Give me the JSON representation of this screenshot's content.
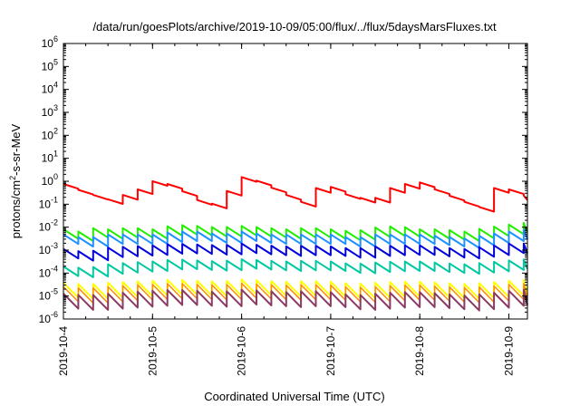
{
  "chart_data": {
    "type": "line",
    "title": "/data/run/goesPlots/archive/2019-10-09/05:00/flux/../flux/5daysMarsFluxes.txt",
    "xlabel": "Coordinated Universal Time (UTC)",
    "ylabel_parts": [
      "protons/cm",
      "2",
      "-s-sr-MeV"
    ],
    "yscale": "log",
    "ylim": [
      1e-06,
      1000000.0
    ],
    "xlim": [
      "2019-10-04T00:00",
      "2019-10-09T05:00"
    ],
    "grid": false,
    "legend": "none",
    "y_ticks": [
      {
        "base": "10",
        "exp": "-6"
      },
      {
        "base": "10",
        "exp": "-5"
      },
      {
        "base": "10",
        "exp": "-4"
      },
      {
        "base": "10",
        "exp": "-3"
      },
      {
        "base": "10",
        "exp": "-2"
      },
      {
        "base": "10",
        "exp": "-1"
      },
      {
        "base": "10",
        "exp": "0"
      },
      {
        "base": "10",
        "exp": "1"
      },
      {
        "base": "10",
        "exp": "2"
      },
      {
        "base": "10",
        "exp": "3"
      },
      {
        "base": "10",
        "exp": "4"
      },
      {
        "base": "10",
        "exp": "5"
      },
      {
        "base": "10",
        "exp": "6"
      }
    ],
    "x_ticks": [
      "2019-10-4",
      "2019-10-5",
      "2019-10-6",
      "2019-10-7",
      "2019-10-8",
      "2019-10-9"
    ],
    "sawtooth_period_hours": 4,
    "series": [
      {
        "color": "#ff0000",
        "width": 2,
        "x": [
          "2019-10-04T00:00",
          "2019-10-04T06:00",
          "2019-10-04T12:00",
          "2019-10-04T14:00",
          "2019-10-04T16:00",
          "2019-10-04T18:00",
          "2019-10-04T20:00",
          "2019-10-04T22:00",
          "2019-10-05T00:00",
          "2019-10-05T02:00",
          "2019-10-05T04:00",
          "2019-10-05T06:00",
          "2019-10-05T12:00",
          "2019-10-05T18:00",
          "2019-10-05T20:00",
          "2019-10-05T22:00",
          "2019-10-06T00:00",
          "2019-10-06T03:00",
          "2019-10-06T06:00",
          "2019-10-06T12:00",
          "2019-10-06T16:00",
          "2019-10-06T18:00",
          "2019-10-06T20:00",
          "2019-10-06T22:00",
          "2019-10-07T00:00",
          "2019-10-07T06:00",
          "2019-10-07T12:00",
          "2019-10-07T16:00",
          "2019-10-07T18:00",
          "2019-10-07T20:00",
          "2019-10-07T22:00",
          "2019-10-08T00:00",
          "2019-10-08T06:00",
          "2019-10-08T12:00",
          "2019-10-08T16:00",
          "2019-10-08T18:00",
          "2019-10-08T20:00",
          "2019-10-08T22:00",
          "2019-10-09T00:00",
          "2019-10-09T02:00",
          "2019-10-09T03:00",
          "2019-10-09T05:00"
        ],
        "y": [
          0.6,
          0.25,
          0.13,
          0.12,
          0.2,
          0.15,
          0.35,
          0.8,
          0.8,
          0.65,
          0.6,
          0.45,
          0.12,
          0.07,
          0.3,
          0.4,
          1.2,
          1.0,
          0.6,
          0.2,
          0.1,
          0.25,
          0.4,
          0.5,
          0.45,
          0.15,
          0.15,
          0.4,
          0.5,
          0.6,
          0.8,
          0.7,
          0.25,
          0.1,
          0.06,
          0.15,
          0.4,
          0.3,
          0.35,
          0.25,
          0.2,
          0.18
        ]
      },
      {
        "color": "#22ee00",
        "width": 2,
        "x": [
          "2019-10-04T00:00",
          "2019-10-04T04:00",
          "2019-10-04T06:00",
          "2019-10-04T12:00",
          "2019-10-04T18:00",
          "2019-10-05T00:00",
          "2019-10-05T06:00",
          "2019-10-05T12:00",
          "2019-10-05T18:00",
          "2019-10-06T00:00",
          "2019-10-06T06:00",
          "2019-10-06T12:00",
          "2019-10-06T18:00",
          "2019-10-07T00:00",
          "2019-10-07T06:00",
          "2019-10-07T12:00",
          "2019-10-07T18:00",
          "2019-10-08T00:00",
          "2019-10-08T06:00",
          "2019-10-08T12:00",
          "2019-10-08T18:00",
          "2019-10-09T00:00",
          "2019-10-09T05:00"
        ],
        "y": [
          0.005,
          0.004,
          0.006,
          0.005,
          0.006,
          0.005,
          0.008,
          0.007,
          0.006,
          0.007,
          0.006,
          0.005,
          0.006,
          0.005,
          0.004,
          0.006,
          0.007,
          0.005,
          0.005,
          0.004,
          0.006,
          0.008,
          0.01
        ]
      },
      {
        "color": "#1e90ff",
        "width": 2,
        "x": [
          "2019-10-04T00:00",
          "2019-10-04T06:00",
          "2019-10-04T12:00",
          "2019-10-04T18:00",
          "2019-10-05T00:00",
          "2019-10-05T06:00",
          "2019-10-05T12:00",
          "2019-10-05T18:00",
          "2019-10-06T00:00",
          "2019-10-06T06:00",
          "2019-10-06T12:00",
          "2019-10-06T18:00",
          "2019-10-07T00:00",
          "2019-10-07T06:00",
          "2019-10-07T12:00",
          "2019-10-07T18:00",
          "2019-10-08T00:00",
          "2019-10-08T06:00",
          "2019-10-08T12:00",
          "2019-10-08T18:00",
          "2019-10-09T00:00",
          "2019-10-09T05:00"
        ],
        "y": [
          0.003,
          0.002,
          0.003,
          0.003,
          0.003,
          0.004,
          0.004,
          0.003,
          0.004,
          0.003,
          0.003,
          0.003,
          0.003,
          0.002,
          0.003,
          0.003,
          0.003,
          0.0025,
          0.002,
          0.003,
          0.004,
          0.005
        ]
      },
      {
        "color": "#0000dd",
        "width": 2,
        "x": [
          "2019-10-04T00:00",
          "2019-10-04T06:00",
          "2019-10-04T12:00",
          "2019-10-04T18:00",
          "2019-10-05T00:00",
          "2019-10-05T06:00",
          "2019-10-05T12:00",
          "2019-10-05T18:00",
          "2019-10-06T00:00",
          "2019-10-06T06:00",
          "2019-10-06T12:00",
          "2019-10-06T18:00",
          "2019-10-07T00:00",
          "2019-10-07T06:00",
          "2019-10-07T12:00",
          "2019-10-07T18:00",
          "2019-10-08T00:00",
          "2019-10-08T06:00",
          "2019-10-08T12:00",
          "2019-10-08T18:00",
          "2019-10-09T00:00",
          "2019-10-09T05:00"
        ],
        "y": [
          0.0007,
          0.0005,
          0.0008,
          0.0009,
          0.001,
          0.0012,
          0.0011,
          0.001,
          0.0012,
          0.001,
          0.0009,
          0.001,
          0.0009,
          0.0007,
          0.0009,
          0.001,
          0.001,
          0.0008,
          0.0007,
          0.0009,
          0.0012,
          0.0012
        ]
      },
      {
        "color": "#00c8a0",
        "width": 2,
        "x": [
          "2019-10-04T00:00",
          "2019-10-04T06:00",
          "2019-10-04T12:00",
          "2019-10-04T18:00",
          "2019-10-05T00:00",
          "2019-10-05T06:00",
          "2019-10-05T12:00",
          "2019-10-05T18:00",
          "2019-10-06T00:00",
          "2019-10-06T06:00",
          "2019-10-06T12:00",
          "2019-10-06T18:00",
          "2019-10-07T00:00",
          "2019-10-07T06:00",
          "2019-10-07T12:00",
          "2019-10-07T18:00",
          "2019-10-08T00:00",
          "2019-10-08T06:00",
          "2019-10-08T12:00",
          "2019-10-08T18:00",
          "2019-10-09T00:00",
          "2019-10-09T05:00"
        ],
        "y": [
          0.00012,
          0.0001,
          0.00015,
          0.00018,
          0.0002,
          0.00025,
          0.00022,
          0.0002,
          0.00025,
          0.00022,
          0.0002,
          0.00022,
          0.0002,
          0.00015,
          0.00018,
          0.0002,
          0.0002,
          0.00017,
          0.00015,
          0.00018,
          0.00022,
          0.00025
        ]
      },
      {
        "color": "#ffff00",
        "width": 2,
        "x": [
          "2019-10-04T00:00",
          "2019-10-04T06:00",
          "2019-10-04T12:00",
          "2019-10-04T18:00",
          "2019-10-05T00:00",
          "2019-10-05T06:00",
          "2019-10-05T12:00",
          "2019-10-05T18:00",
          "2019-10-06T00:00",
          "2019-10-06T06:00",
          "2019-10-06T12:00",
          "2019-10-06T18:00",
          "2019-10-07T00:00",
          "2019-10-07T06:00",
          "2019-10-07T12:00",
          "2019-10-07T18:00",
          "2019-10-08T00:00",
          "2019-10-08T06:00",
          "2019-10-08T12:00",
          "2019-10-08T18:00",
          "2019-10-09T00:00",
          "2019-10-09T05:00"
        ],
        "y": [
          1.8e-05,
          1.5e-05,
          1.8e-05,
          2e-05,
          2.2e-05,
          2.5e-05,
          2.2e-05,
          2e-05,
          2.5e-05,
          2.2e-05,
          2e-05,
          2.2e-05,
          2e-05,
          1.6e-05,
          1.8e-05,
          2e-05,
          2e-05,
          1.8e-05,
          1.6e-05,
          1.8e-05,
          2.2e-05,
          2.5e-05
        ]
      },
      {
        "color": "#ff8c00",
        "width": 1.5,
        "x": [
          "2019-10-04T00:00",
          "2019-10-04T06:00",
          "2019-10-04T12:00",
          "2019-10-04T18:00",
          "2019-10-05T00:00",
          "2019-10-05T06:00",
          "2019-10-05T12:00",
          "2019-10-05T18:00",
          "2019-10-06T00:00",
          "2019-10-06T06:00",
          "2019-10-06T12:00",
          "2019-10-06T18:00",
          "2019-10-07T00:00",
          "2019-10-07T06:00",
          "2019-10-07T12:00",
          "2019-10-07T18:00",
          "2019-10-08T00:00",
          "2019-10-08T06:00",
          "2019-10-08T12:00",
          "2019-10-08T18:00",
          "2019-10-09T00:00",
          "2019-10-09T05:00"
        ],
        "y": [
          1.2e-05,
          1e-05,
          1.2e-05,
          1.4e-05,
          1.5e-05,
          1.7e-05,
          1.5e-05,
          1.4e-05,
          1.7e-05,
          1.5e-05,
          1.4e-05,
          1.5e-05,
          1.4e-05,
          1.1e-05,
          1.2e-05,
          1.4e-05,
          1.4e-05,
          1.2e-05,
          1.1e-05,
          1.2e-05,
          1.5e-05,
          1.7e-05
        ]
      },
      {
        "color": "#8b3a62",
        "width": 2,
        "x": [
          "2019-10-04T00:00",
          "2019-10-04T06:00",
          "2019-10-04T12:00",
          "2019-10-04T18:00",
          "2019-10-05T00:00",
          "2019-10-05T06:00",
          "2019-10-05T12:00",
          "2019-10-05T18:00",
          "2019-10-06T00:00",
          "2019-10-06T06:00",
          "2019-10-06T12:00",
          "2019-10-06T18:00",
          "2019-10-07T00:00",
          "2019-10-07T06:00",
          "2019-10-07T12:00",
          "2019-10-07T18:00",
          "2019-10-08T00:00",
          "2019-10-08T06:00",
          "2019-10-08T12:00",
          "2019-10-08T18:00",
          "2019-10-09T00:00",
          "2019-10-09T05:00"
        ],
        "y": [
          6e-06,
          5e-06,
          6e-06,
          7e-06,
          8e-06,
          9e-06,
          8e-06,
          7e-06,
          9e-06,
          8e-06,
          7e-06,
          8e-06,
          7e-06,
          5e-06,
          6e-06,
          7e-06,
          7e-06,
          6e-06,
          5e-06,
          6e-06,
          8e-06,
          9e-06
        ]
      }
    ]
  }
}
